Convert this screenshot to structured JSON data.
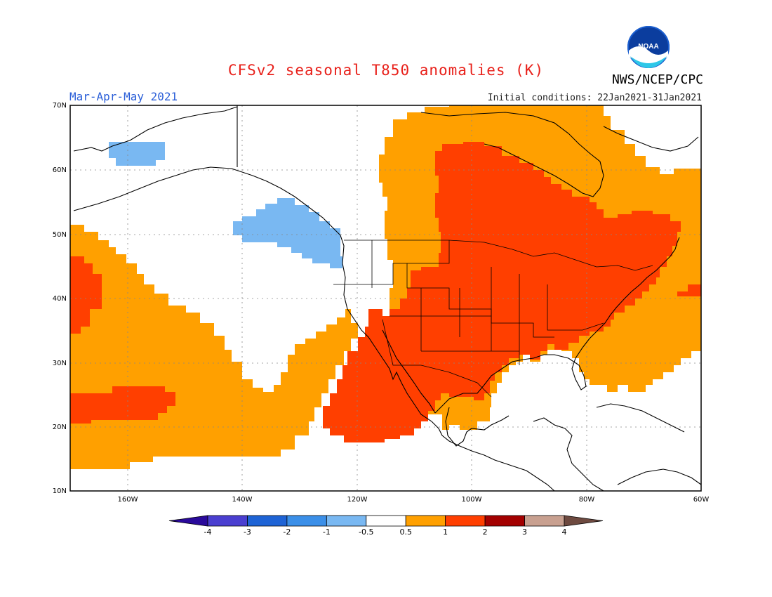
{
  "title": "CFSv2 seasonal T850 anomalies (K)",
  "agency": "NWS/NCEP/CPC",
  "logo_text": "NOAA",
  "season": "Mar-Apr-May 2021",
  "initial_conditions": "Initial conditions: 22Jan2021-31Jan2021",
  "lat_labels": [
    "70N",
    "60N",
    "50N",
    "40N",
    "30N",
    "20N",
    "10N"
  ],
  "lon_labels": [
    "160W",
    "140W",
    "120W",
    "100W",
    "80W",
    "60W"
  ],
  "colorbar": {
    "labels": [
      "-4",
      "-3",
      "-2",
      "-1",
      "-0.5",
      "0.5",
      "1",
      "2",
      "3",
      "4"
    ],
    "colors": [
      "#2a0a9b",
      "#4a3fd0",
      "#1e63d5",
      "#3b8fe8",
      "#79b8f2",
      "#ffffff",
      "#ffa000",
      "#ff3f00",
      "#a30000",
      "#c8a090",
      "#6e4a40"
    ]
  },
  "colors": {
    "title": "#e8201a",
    "season": "#2b5fd8",
    "anom_0_5_to_1": "#ffa000",
    "anom_1_to_2": "#ff3f00",
    "anom_neg_0_5_to_neg_1": "#79b8f2"
  }
}
